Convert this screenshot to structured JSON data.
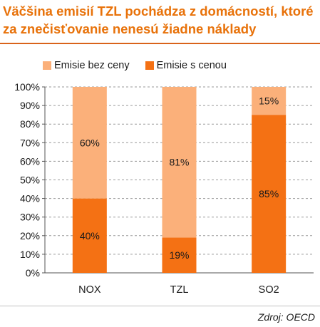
{
  "title_line1": "Väčšina emisií TZL pochádza z domácností, ktoré",
  "title_line2": "za znečisťovanie nenesú žiadne náklady",
  "source": "Zdroj: OECD",
  "colors": {
    "title": "#e8720a",
    "series_light": "#fbb07a",
    "series_dark": "#f47114",
    "grid": "#9a9a9a"
  },
  "chart_data": {
    "type": "bar",
    "stacked": true,
    "categories": [
      "NOX",
      "TZL",
      "SO2"
    ],
    "series": [
      {
        "name": "Emisie s cenou",
        "values": [
          40,
          19,
          85
        ],
        "labels": [
          "40%",
          "19%",
          "85%"
        ]
      },
      {
        "name": "Emisie bez ceny",
        "values": [
          60,
          81,
          15
        ],
        "labels": [
          "60%",
          "81%",
          "15%"
        ]
      }
    ],
    "legend_order": [
      "Emisie bez ceny",
      "Emisie s cenou"
    ],
    "ylim": [
      0,
      100
    ],
    "yticks": [
      "0%",
      "10%",
      "20%",
      "30%",
      "40%",
      "50%",
      "60%",
      "70%",
      "80%",
      "90%",
      "100%"
    ],
    "grid": true,
    "legend_position": "top"
  }
}
